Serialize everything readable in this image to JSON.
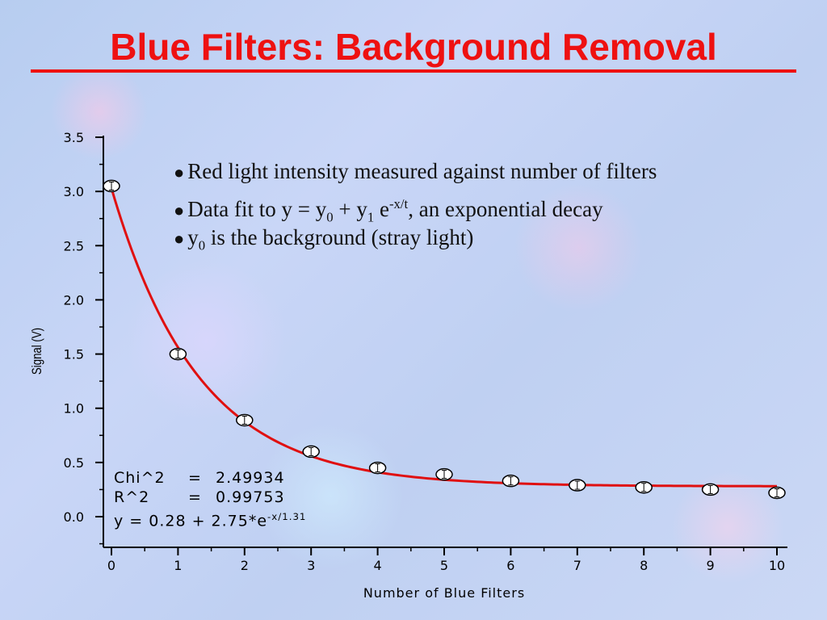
{
  "slide": {
    "title": "Blue Filters: Background Removal",
    "title_color": "#ee1111"
  },
  "bullets": [
    {
      "text": "Red light intensity measured against number of  filters"
    },
    {
      "pre": "Data fit to y = y",
      "sub0": "0",
      "mid": " + y",
      "sub1": "1",
      "mid2": " e",
      "sup": "-x/t",
      "post": ", an exponential decay"
    },
    {
      "pre": "y",
      "sub0": "0",
      "post": " is the background (stray light)"
    }
  ],
  "fit": {
    "chi_label": "Chi^2",
    "chi_eq": "=",
    "chi_val": "2.49934",
    "r_label": "R^2",
    "r_eq": "=",
    "r_val": "0.99753",
    "eq_main": "y = 0.28 + 2.75*e",
    "eq_sup": "-x/1.31"
  },
  "chart_data": {
    "type": "scatter",
    "xlabel": "Number of Blue Filters",
    "ylabel": "Signal (V)",
    "xlim": [
      0,
      10
    ],
    "ylim": [
      0.0,
      3.5
    ],
    "x_ticks": [
      "0",
      "1",
      "2",
      "3",
      "4",
      "5",
      "6",
      "7",
      "8",
      "9",
      "10"
    ],
    "y_ticks": [
      "0.0",
      "0.5",
      "1.0",
      "1.5",
      "2.0",
      "2.5",
      "3.0",
      "3.5"
    ],
    "series": [
      {
        "x": [
          0,
          1,
          2,
          3,
          4,
          5,
          6,
          7,
          8,
          9,
          10
        ],
        "y": [
          3.05,
          1.5,
          0.89,
          0.6,
          0.45,
          0.39,
          0.33,
          0.29,
          0.27,
          0.25,
          0.22
        ]
      }
    ],
    "fit": {
      "y0": 0.28,
      "y1": 2.75,
      "t": 1.31,
      "color": "#e01010"
    },
    "grid": false
  }
}
